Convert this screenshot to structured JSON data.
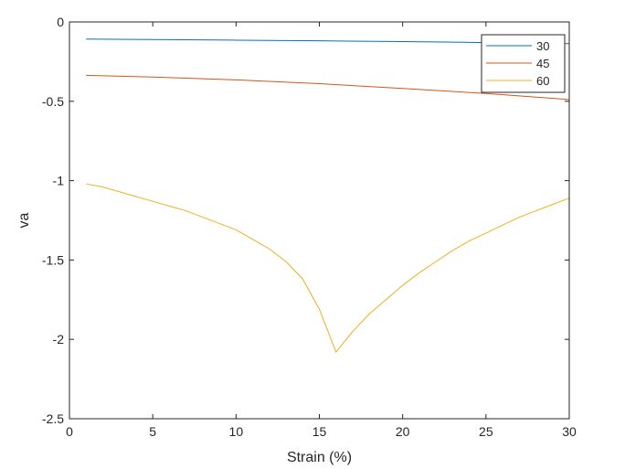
{
  "chart_data": {
    "type": "line",
    "title": "",
    "xlabel": "Strain (%)",
    "ylabel": "va",
    "xlim": [
      0,
      30
    ],
    "ylim": [
      -2.5,
      0
    ],
    "xticks": [
      0,
      5,
      10,
      15,
      20,
      25,
      30
    ],
    "yticks": [
      0,
      -0.5,
      -1,
      -1.5,
      -2,
      -2.5
    ],
    "xtick_labels": [
      "0",
      "5",
      "10",
      "15",
      "20",
      "25",
      "30"
    ],
    "ytick_labels": [
      "0",
      "-0.5",
      "-1",
      "-1.5",
      "-2",
      "-2.5"
    ],
    "grid": false,
    "box": true,
    "legend_position": "top-right",
    "series": [
      {
        "name": "30",
        "color": "#0072BD",
        "x": [
          1,
          5,
          10,
          15,
          20,
          25,
          30
        ],
        "y": [
          -0.108,
          -0.111,
          -0.115,
          -0.119,
          -0.124,
          -0.13,
          -0.137
        ]
      },
      {
        "name": "45",
        "color": "#D95319",
        "x": [
          1,
          5,
          10,
          15,
          20,
          25,
          30
        ],
        "y": [
          -0.336,
          -0.347,
          -0.365,
          -0.389,
          -0.419,
          -0.451,
          -0.489
        ]
      },
      {
        "name": "60",
        "color": "#EDB120",
        "x": [
          1,
          2,
          3,
          4,
          5,
          6,
          7,
          8,
          9,
          10,
          11,
          12,
          13,
          14,
          15,
          16,
          17,
          18,
          19,
          20,
          21,
          22,
          23,
          24,
          25,
          26,
          27,
          28,
          29,
          30
        ],
        "y": [
          -1.02,
          -1.04,
          -1.07,
          -1.1,
          -1.13,
          -1.16,
          -1.19,
          -1.23,
          -1.27,
          -1.31,
          -1.37,
          -1.43,
          -1.51,
          -1.62,
          -1.81,
          -2.08,
          -1.95,
          -1.84,
          -1.75,
          -1.66,
          -1.58,
          -1.51,
          -1.44,
          -1.38,
          -1.33,
          -1.28,
          -1.23,
          -1.19,
          -1.15,
          -1.11
        ]
      }
    ]
  }
}
